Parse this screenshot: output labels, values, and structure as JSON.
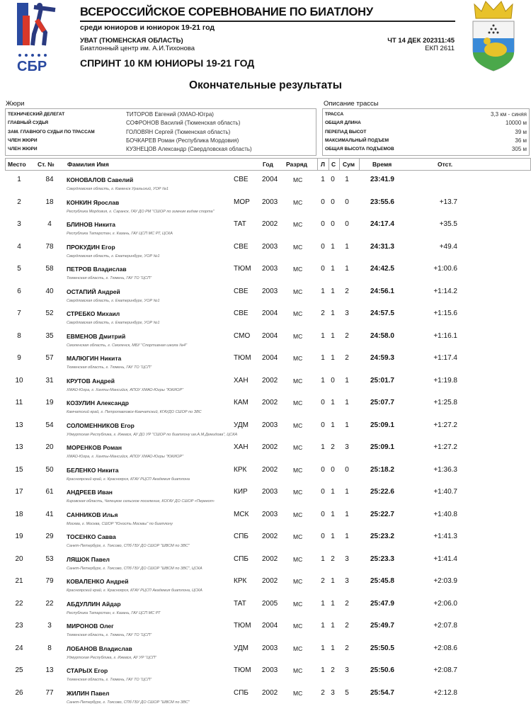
{
  "header": {
    "title": "ВСЕРОССИЙСКОЕ СОРЕВНОВАНИЕ ПО БИАТЛОНУ",
    "subtitle": "среди юниоров и юниорок 19-21 год",
    "location": "УВАТ (ТЮМЕНСКАЯ ОБЛАСТЬ)",
    "venue": "Биатлонный центр им. А.И.Тихонова",
    "datetime": "ЧТ 14 ДЕК 202311:45",
    "ekp": "ЕКП 2611",
    "event": "СПРИНТ 10 КМ ЮНИОРЫ 19-21 ГОД",
    "logo_text": "СБР"
  },
  "results_title": "Окончательные результаты",
  "jury": {
    "title": "Жюри",
    "items": [
      {
        "role": "ТЕХНИЧЕСКИЙ ДЕЛЕГАТ",
        "name": "ТИТОРОВ Евгений (ХМАО-Югра)"
      },
      {
        "role": "ГЛАВНЫЙ СУДЬЯ",
        "name": "СОФРОНОВ Василий (Тюменская область)"
      },
      {
        "role": "ЗАМ. ГЛАВНОГО СУДЬИ ПО ТРАССАМ",
        "name": "ГОЛОВЯН Сергей (Тюменская область)"
      },
      {
        "role": "ЧЛЕН ЖЮРИ",
        "name": "БОЧКАРЕВ Роман (Республика Мордовия)"
      },
      {
        "role": "ЧЛЕН ЖЮРИ",
        "name": "КУЗНЕЦОВ Александр (Свердловская область)"
      }
    ]
  },
  "track": {
    "title": "Описание трассы",
    "items": [
      {
        "key": "ТРАССА",
        "value": "3,3 км - синяя"
      },
      {
        "key": "ОБЩАЯ ДЛИНА",
        "value": "10000 м"
      },
      {
        "key": "ПЕРЕПАД ВЫСОТ",
        "value": "39 м"
      },
      {
        "key": "МАКСИМАЛЬНЫЙ ПОДЪЕМ",
        "value": "36 м"
      },
      {
        "key": "ОБЩАЯ ВЫСОТА ПОДЪЕМОВ",
        "value": "305 м"
      }
    ]
  },
  "columns": {
    "place": "Место",
    "bib": "Ст. №",
    "name": "Фамилия Имя",
    "year": "Год",
    "rank": "Разряд",
    "l": "Л",
    "s": "С",
    "sum": "Сум",
    "time": "Время",
    "diff": "Отст."
  },
  "rows": [
    {
      "place": "1",
      "bib": "84",
      "name": "КОНОВАЛОВ Савелий",
      "region": "СВЕ",
      "year": "2004",
      "rank": "МС",
      "l": "1",
      "s": "0",
      "sum": "1",
      "time": "23:41.9",
      "diff": "",
      "sub": "Свердловская область,  г. Каменск Уральский, УОР №1"
    },
    {
      "place": "2",
      "bib": "18",
      "name": "КОНКИН Ярослав",
      "region": "МОР",
      "year": "2003",
      "rank": "МС",
      "l": "0",
      "s": "0",
      "sum": "0",
      "time": "23:55.6",
      "diff": "+13.7",
      "sub": "Республика Мордовия,  г. Саранск, ГАУ ДО РМ \"СШОР по зимним видам спорта\""
    },
    {
      "place": "3",
      "bib": "4",
      "name": "БЛИНОВ Никита",
      "region": "ТАТ",
      "year": "2002",
      "rank": "МС",
      "l": "0",
      "s": "0",
      "sum": "0",
      "time": "24:17.4",
      "diff": "+35.5",
      "sub": "Республика Татарстан,  г. Казань, ГАУ ЦСП МС РТ, ЦСКА"
    },
    {
      "place": "4",
      "bib": "78",
      "name": "ПРОКУДИН Егор",
      "region": "СВЕ",
      "year": "2003",
      "rank": "МС",
      "l": "0",
      "s": "1",
      "sum": "1",
      "time": "24:31.3",
      "diff": "+49.4",
      "sub": "Свердловская область,  г. Екатеринбург, УОР №1"
    },
    {
      "place": "5",
      "bib": "58",
      "name": "ПЕТРОВ Владислав",
      "region": "ТЮМ",
      "year": "2003",
      "rank": "МС",
      "l": "0",
      "s": "1",
      "sum": "1",
      "time": "24:42.5",
      "diff": "+1:00.6",
      "sub": "Тюменская область,  г. Тюмень, ГАУ ТО \"ЦСП\""
    },
    {
      "place": "6",
      "bib": "40",
      "name": "ОСТАПИЙ Андрей",
      "region": "СВЕ",
      "year": "2003",
      "rank": "МС",
      "l": "1",
      "s": "1",
      "sum": "2",
      "time": "24:56.1",
      "diff": "+1:14.2",
      "sub": "Свердловская область,  г. Екатеринбург, УОР №1"
    },
    {
      "place": "7",
      "bib": "52",
      "name": "СТРЕБКО Михаил",
      "region": "СВЕ",
      "year": "2004",
      "rank": "МС",
      "l": "2",
      "s": "1",
      "sum": "3",
      "time": "24:57.5",
      "diff": "+1:15.6",
      "sub": "Свердловская область,  г. Екатеринбург, УОР №1"
    },
    {
      "place": "8",
      "bib": "35",
      "name": "ЕВМЕНОВ Дмитрий",
      "region": "СМО",
      "year": "2004",
      "rank": "МС",
      "l": "1",
      "s": "1",
      "sum": "2",
      "time": "24:58.0",
      "diff": "+1:16.1",
      "sub": "Смоленская область,  г. Смоленск, МБУ \"Спортивная школа №4\""
    },
    {
      "place": "9",
      "bib": "57",
      "name": "МАЛЮГИН Никита",
      "region": "ТЮМ",
      "year": "2004",
      "rank": "МС",
      "l": "1",
      "s": "1",
      "sum": "2",
      "time": "24:59.3",
      "diff": "+1:17.4",
      "sub": "Тюменская область,  г. Тюмень, ГАУ ТО \"ЦСП\""
    },
    {
      "place": "10",
      "bib": "31",
      "name": "КРУТОВ Андрей",
      "region": "ХАН",
      "year": "2002",
      "rank": "МС",
      "l": "1",
      "s": "0",
      "sum": "1",
      "time": "25:01.7",
      "diff": "+1:19.8",
      "sub": "ХМАО-Югра,  г. Ханты-Мансийск, АПОУ ХМАО-Югры \"ЮКИОР\""
    },
    {
      "place": "11",
      "bib": "19",
      "name": "КОЗУЛИН Александр",
      "region": "КАМ",
      "year": "2002",
      "rank": "МС",
      "l": "0",
      "s": "1",
      "sum": "1",
      "time": "25:07.7",
      "diff": "+1:25.8",
      "sub": "Камчатский край,  г. Петропавловск-Камчатский, КГАУДО СШОР по ЗВС"
    },
    {
      "place": "13",
      "bib": "54",
      "name": "СОЛОМЕННИКОВ Егор",
      "region": "УДМ",
      "year": "2003",
      "rank": "МС",
      "l": "0",
      "s": "1",
      "sum": "1",
      "time": "25:09.1",
      "diff": "+1:27.2",
      "sub": "Удмуртская Республика,  г. Ижевск, АУ ДО УР \"СШОР по биатлону им.А.М.Демидова\", ЦСКА"
    },
    {
      "place": "13",
      "bib": "20",
      "name": "МОРЕНКОВ Роман",
      "region": "ХАН",
      "year": "2002",
      "rank": "МС",
      "l": "1",
      "s": "2",
      "sum": "3",
      "time": "25:09.1",
      "diff": "+1:27.2",
      "sub": "ХМАО-Югра,  г. Ханты-Мансийск, АПОУ ХМАО-Югры \"ЮКИОР\""
    },
    {
      "place": "15",
      "bib": "50",
      "name": "БЕЛЕНКО Никита",
      "region": "КРК",
      "year": "2002",
      "rank": "МС",
      "l": "0",
      "s": "0",
      "sum": "0",
      "time": "25:18.2",
      "diff": "+1:36.3",
      "sub": "Красноярский край,  г. Красноярск, КГАУ РЦСП Академия биатлона"
    },
    {
      "place": "17",
      "bib": "61",
      "name": "АНДРЕЕВ Иван",
      "region": "КИР",
      "year": "2003",
      "rank": "МС",
      "l": "0",
      "s": "1",
      "sum": "1",
      "time": "25:22.6",
      "diff": "+1:40.7",
      "sub": "Кировская область,  Чепецкое сельское поселение, КОГАУ ДО СШОР «Перекоп»"
    },
    {
      "place": "18",
      "bib": "41",
      "name": "САННИКОВ Илья",
      "region": "МСК",
      "year": "2003",
      "rank": "МС",
      "l": "0",
      "s": "1",
      "sum": "1",
      "time": "25:22.7",
      "diff": "+1:40.8",
      "sub": "Москва,  г. Москва, СШОР \"Юность Москвы\" по биатлону"
    },
    {
      "place": "19",
      "bib": "29",
      "name": "ТОСЕНКО Савва",
      "region": "СПБ",
      "year": "2002",
      "rank": "МС",
      "l": "0",
      "s": "1",
      "sum": "1",
      "time": "25:23.2",
      "diff": "+1:41.3",
      "sub": "Санкт-Петербург,  г. Токсово, СПб ГБУ ДО СШОР \"ШВСМ по ЗВС\""
    },
    {
      "place": "20",
      "bib": "53",
      "name": "ЛЯШОК Павел",
      "region": "СПБ",
      "year": "2002",
      "rank": "МС",
      "l": "1",
      "s": "2",
      "sum": "3",
      "time": "25:23.3",
      "diff": "+1:41.4",
      "sub": "Санкт-Петербург,  г. Токсово, СПб ГБУ ДО СШОР \"ШВСМ по ЗВС\", ЦСКА"
    },
    {
      "place": "21",
      "bib": "79",
      "name": "КОВАЛЕНКО Андрей",
      "region": "КРК",
      "year": "2002",
      "rank": "МС",
      "l": "2",
      "s": "1",
      "sum": "3",
      "time": "25:45.8",
      "diff": "+2:03.9",
      "sub": "Красноярский край,  г. Красноярск, КГАУ РЦСП Академия биатлона, ЦСКА"
    },
    {
      "place": "22",
      "bib": "22",
      "name": "АБДУЛЛИН Айдар",
      "region": "ТАТ",
      "year": "2005",
      "rank": "МС",
      "l": "1",
      "s": "1",
      "sum": "2",
      "time": "25:47.9",
      "diff": "+2:06.0",
      "sub": "Республика Татарстан,  г. Казань, ГАУ ЦСП МС РТ"
    },
    {
      "place": "23",
      "bib": "3",
      "name": "МИРОНОВ Олег",
      "region": "ТЮМ",
      "year": "2004",
      "rank": "МС",
      "l": "1",
      "s": "1",
      "sum": "2",
      "time": "25:49.7",
      "diff": "+2:07.8",
      "sub": "Тюменская область,  г. Тюмень, ГАУ ТО \"ЦСП\""
    },
    {
      "place": "24",
      "bib": "8",
      "name": "ЛОБАНОВ Владислав",
      "region": "УДМ",
      "year": "2003",
      "rank": "МС",
      "l": "1",
      "s": "1",
      "sum": "2",
      "time": "25:50.5",
      "diff": "+2:08.6",
      "sub": "Удмуртская Республика,  г. Ижевск, АУ УР \"ЦСП\""
    },
    {
      "place": "25",
      "bib": "13",
      "name": "СТАРЫХ Егор",
      "region": "ТЮМ",
      "year": "2003",
      "rank": "МС",
      "l": "1",
      "s": "2",
      "sum": "3",
      "time": "25:50.6",
      "diff": "+2:08.7",
      "sub": "Тюменская область,  г. Тюмень, ГАУ ТО \"ЦСП\""
    },
    {
      "place": "26",
      "bib": "77",
      "name": "ЖИЛИН Павел",
      "region": "СПБ",
      "year": "2002",
      "rank": "МС",
      "l": "2",
      "s": "3",
      "sum": "5",
      "time": "25:54.7",
      "diff": "+2:12.8",
      "sub": "Санкт-Петербург,  г. Токсово, СПб ГБУ ДО СШОР \"ШВСМ по ЗВС\""
    }
  ]
}
